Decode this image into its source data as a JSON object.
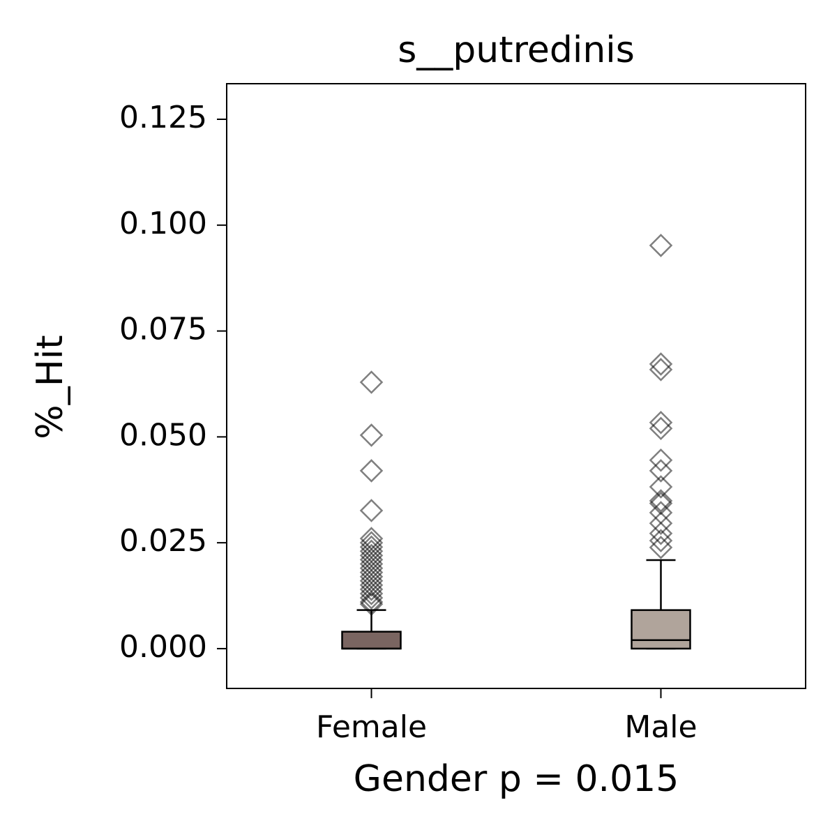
{
  "chart_data": {
    "type": "box",
    "title": "s__putredinis",
    "x_label": "Gender p = 0.015",
    "y_label": "%_Hit",
    "categories": [
      "Female",
      "Male"
    ],
    "colors": [
      "#7a6561",
      "#b0a49b"
    ],
    "boxes": [
      {
        "min": 0,
        "q1": 0,
        "median": 0,
        "q3": 0.004,
        "max": 0.0091,
        "outliers": [
          0.0629,
          0.0504,
          0.042,
          0.0326,
          0.026,
          0.025,
          0.024,
          0.023,
          0.022,
          0.021,
          0.02,
          0.019,
          0.018,
          0.017,
          0.016,
          0.015,
          0.014,
          0.013,
          0.012,
          0.011,
          0.0105
        ]
      },
      {
        "min": 0,
        "q1": 0,
        "median": 0.002,
        "q3": 0.0091,
        "max": 0.0209,
        "outliers": [
          0.0952,
          0.0672,
          0.0659,
          0.0534,
          0.052,
          0.0445,
          0.042,
          0.0382,
          0.0349,
          0.0343,
          0.0321,
          0.0296,
          0.0272,
          0.0255,
          0.0239
        ]
      }
    ],
    "ylim": [
      -0.0094,
      0.1334
    ],
    "yticks": [
      {
        "value": 0,
        "label": "0.000"
      },
      {
        "value": 0.025,
        "label": "0.025"
      },
      {
        "value": 0.05,
        "label": "0.050"
      },
      {
        "value": 0.075,
        "label": "0.075"
      },
      {
        "value": 0.1,
        "label": "0.100"
      },
      {
        "value": 0.125,
        "label": "0.125"
      }
    ],
    "grid": false
  }
}
